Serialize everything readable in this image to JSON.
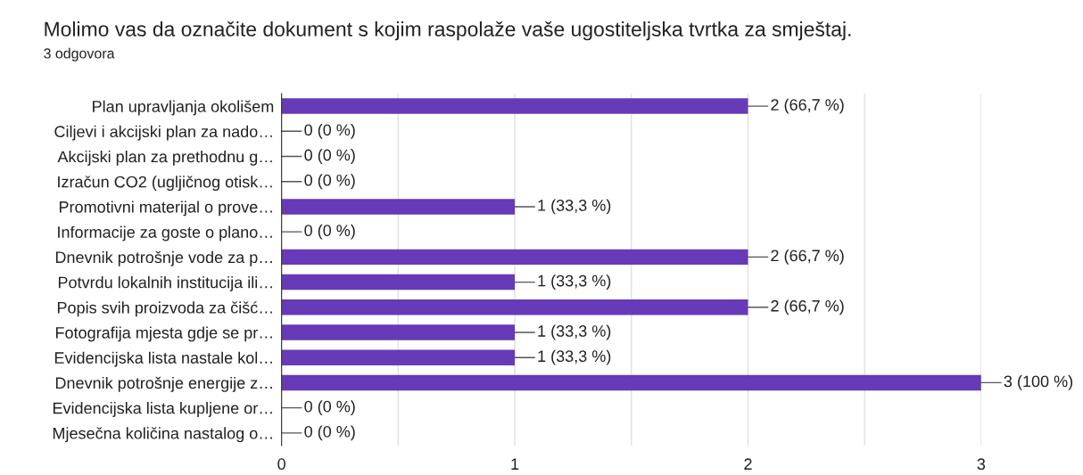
{
  "chart_data": {
    "type": "bar",
    "orientation": "horizontal",
    "title": "Molimo vas da označite dokument s kojim raspolaže vaše ugostiteljska tvrtka za smještaj.",
    "subtitle": "3 odgovora",
    "categories": [
      "Plan upravljanja okolišem",
      "Ciljevi i akcijski plan za nado…",
      "Akcijski plan za prethodnu g…",
      "Izračun CO2 (ugljičnog otisk…",
      "Promotivni materijal o prove…",
      "Informacije za goste o plano…",
      "Dnevnik potrošnje vode za p…",
      "Potvrdu lokalnih institucija ili…",
      "Popis svih proizvoda za čišć…",
      "Fotografija mjesta gdje se pr…",
      "Evidencijska lista nastale kol…",
      "Dnevnik potrošnje energije z…",
      "Evidencijska lista kupljene or…",
      "Mjesečna količina nastalog o…"
    ],
    "values": [
      2,
      0,
      0,
      0,
      1,
      0,
      2,
      1,
      2,
      1,
      1,
      3,
      0,
      0
    ],
    "value_labels": [
      "2 (66,7 %)",
      "0 (0 %)",
      "0 (0 %)",
      "0 (0 %)",
      "1 (33,3 %)",
      "0 (0 %)",
      "2 (66,7 %)",
      "1 (33,3 %)",
      "2 (66,7 %)",
      "1 (33,3 %)",
      "1 (33,3 %)",
      "3 (100 %)",
      "0 (0 %)",
      "0 (0 %)"
    ],
    "color": "#673ab7",
    "xlim": [
      0,
      3
    ],
    "xticks": [
      0,
      {
        "value": 0.5,
        "label": null
      },
      1,
      {
        "value": 1.5,
        "label": null
      },
      2,
      {
        "value": 2.5,
        "label": null
      },
      3
    ],
    "grid": "x"
  }
}
